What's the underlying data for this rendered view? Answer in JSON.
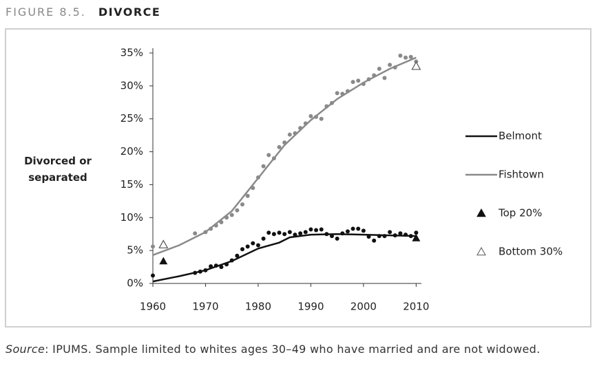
{
  "figure_label": "FIGURE 8.5.",
  "figure_title": "DIVORCE",
  "chart_data": {
    "type": "line",
    "y_label": "Divorced or separated",
    "xlim": [
      1960,
      2011
    ],
    "ylim": [
      0,
      35
    ],
    "xticks": [
      1960,
      1970,
      1980,
      1990,
      2000,
      2010
    ],
    "yticks": [
      {
        "value": 0,
        "label": "0%"
      },
      {
        "value": 5,
        "label": "5%"
      },
      {
        "value": 10,
        "label": "10%"
      },
      {
        "value": 15,
        "label": "15%"
      },
      {
        "value": 20,
        "label": "20%"
      },
      {
        "value": 25,
        "label": "25%"
      },
      {
        "value": 30,
        "label": "30%"
      },
      {
        "value": 35,
        "label": "35%"
      }
    ],
    "series": [
      {
        "name": "Belmont",
        "color": "#111111",
        "marker": "line",
        "x": [
          1960,
          1965,
          1970,
          1975,
          1980,
          1984,
          1986,
          1990,
          1995,
          2000,
          2005,
          2010
        ],
        "values": [
          0.3,
          1.1,
          2.0,
          3.4,
          5.3,
          6.2,
          7.0,
          7.4,
          7.5,
          7.4,
          7.3,
          7.2
        ]
      },
      {
        "name": "Fishtown",
        "color": "#8a8a8a",
        "marker": "line",
        "x": [
          1960,
          1965,
          1970,
          1975,
          1980,
          1985,
          1990,
          1995,
          2000,
          2005,
          2010
        ],
        "values": [
          4.3,
          5.8,
          7.8,
          11.0,
          16.0,
          21.0,
          24.8,
          28.0,
          30.5,
          32.6,
          34.3
        ]
      },
      {
        "name": "Top 20%",
        "color": "#111111",
        "marker": "triangle-filled",
        "x": [
          1962,
          2010
        ],
        "values": [
          3.4,
          6.9
        ]
      },
      {
        "name": "Bottom 30%",
        "color": "#555555",
        "marker": "triangle-open",
        "x": [
          1962,
          2010
        ],
        "values": [
          5.9,
          33.0
        ]
      },
      {
        "color": "#111111",
        "marker": "circle",
        "x": [
          1960,
          1968,
          1969,
          1970,
          1971,
          1972,
          1973,
          1974,
          1975,
          1976,
          1977,
          1978,
          1979,
          1980,
          1981,
          1982,
          1983,
          1984,
          1985,
          1986,
          1987,
          1988,
          1989,
          1990,
          1991,
          1992,
          1993,
          1994,
          1995,
          1996,
          1997,
          1998,
          1999,
          2000,
          2001,
          2002,
          2003,
          2004,
          2005,
          2006,
          2007,
          2008,
          2009,
          2010
        ],
        "values": [
          1.2,
          1.6,
          1.8,
          2.0,
          2.6,
          2.7,
          2.5,
          2.9,
          3.5,
          4.2,
          5.2,
          5.6,
          6.1,
          5.8,
          6.8,
          7.7,
          7.5,
          7.7,
          7.5,
          7.8,
          7.4,
          7.6,
          7.8,
          8.2,
          8.1,
          8.2,
          7.5,
          7.2,
          6.8,
          7.6,
          7.9,
          8.3,
          8.3,
          8.0,
          7.1,
          6.5,
          7.2,
          7.2,
          7.8,
          7.3,
          7.6,
          7.4,
          7.2,
          7.7
        ]
      },
      {
        "color": "#8a8a8a",
        "marker": "circle",
        "x": [
          1960,
          1968,
          1970,
          1971,
          1972,
          1973,
          1974,
          1975,
          1976,
          1977,
          1978,
          1979,
          1980,
          1981,
          1982,
          1983,
          1984,
          1985,
          1986,
          1987,
          1988,
          1989,
          1990,
          1991,
          1992,
          1993,
          1994,
          1995,
          1996,
          1997,
          1998,
          1999,
          2000,
          2001,
          2002,
          2003,
          2004,
          2005,
          2006,
          2007,
          2008,
          2009,
          2010
        ],
        "values": [
          5.6,
          7.6,
          7.8,
          8.3,
          8.8,
          9.3,
          10.0,
          10.4,
          11.1,
          12.0,
          13.3,
          14.5,
          16.1,
          17.8,
          19.5,
          19.0,
          20.7,
          21.4,
          22.6,
          22.8,
          23.6,
          24.3,
          25.4,
          25.3,
          25.0,
          26.9,
          27.4,
          28.9,
          28.8,
          29.2,
          30.6,
          30.8,
          30.3,
          31.0,
          31.6,
          32.6,
          31.2,
          33.2,
          32.8,
          34.6,
          34.3,
          34.4,
          33.7
        ]
      }
    ]
  },
  "footer": {
    "source_label": "Source",
    "text": ": IPUMS. Sample limited to whites ages 30–49 who have married and are not widowed."
  }
}
